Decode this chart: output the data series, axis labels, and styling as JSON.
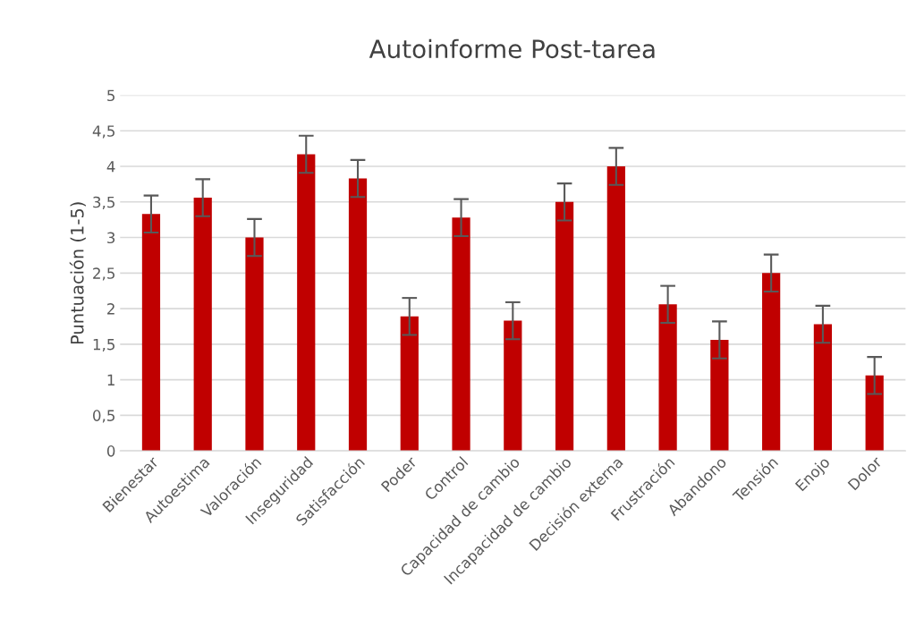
{
  "chart_data": {
    "type": "bar",
    "title": "Autoinforme Post-tarea",
    "ylabel": "Puntuación (1-5)",
    "categories": [
      "Bienestar",
      "Autoestima",
      "Valoración",
      "Inseguridad",
      "Satisfacción",
      "Poder",
      "Control",
      "Capacidad de cambio",
      "Incapacidad de cambio",
      "Decisión externa",
      "Frustración",
      "Abandono",
      "Tensión",
      "Enojo",
      "Dolor"
    ],
    "values": [
      3.33,
      3.56,
      3.0,
      4.17,
      3.83,
      1.89,
      3.28,
      1.83,
      3.5,
      4.0,
      2.06,
      1.56,
      2.5,
      1.78,
      1.06
    ],
    "errors": [
      0.26,
      0.26,
      0.26,
      0.26,
      0.26,
      0.26,
      0.26,
      0.26,
      0.26,
      0.26,
      0.26,
      0.26,
      0.26,
      0.26,
      0.26
    ],
    "color": "#c00000",
    "ylim": [
      0,
      5
    ],
    "yticks": [
      0,
      {
        "value": 0.5,
        "label": "0,5"
      },
      1,
      {
        "value": 1.5,
        "label": "1,5"
      },
      2,
      {
        "value": 2.5,
        "label": "2,5"
      },
      3,
      {
        "value": 3.5,
        "label": "3,5"
      },
      4,
      {
        "value": 4.5,
        "label": "4,5"
      },
      5
    ],
    "grid": "y",
    "legend": false
  }
}
